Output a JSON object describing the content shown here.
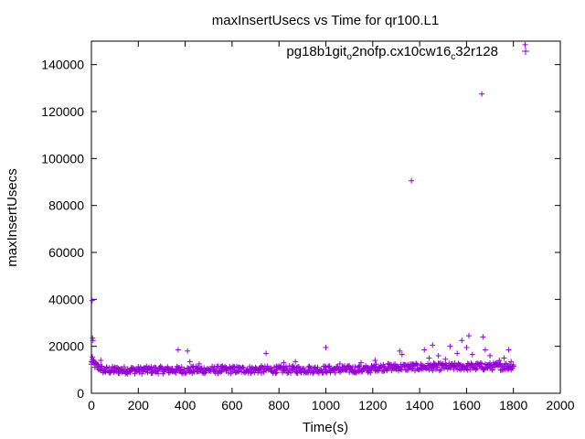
{
  "chart_data": {
    "type": "scatter",
    "title": "maxInsertUsecs vs Time for qr100.L1",
    "xlabel": "Time(s)",
    "ylabel": "maxInsertUsecs",
    "xlim": [
      0,
      2000
    ],
    "ylim": [
      0,
      150000
    ],
    "xticks": [
      0,
      200,
      400,
      600,
      800,
      1000,
      1200,
      1400,
      1600,
      1800,
      2000
    ],
    "yticks": [
      0,
      20000,
      40000,
      60000,
      80000,
      100000,
      120000,
      140000
    ],
    "grid": false,
    "legend_position": "top-right",
    "marker": "+",
    "color": "#9400d3",
    "series": [
      {
        "name_parts": [
          "pg18b1git",
          "o",
          "2nofp.cx10cw16",
          "c",
          "32r128"
        ],
        "band": {
          "x_start": 0,
          "x_end": 1800,
          "step": 5,
          "segments": [
            {
              "x_from": 0,
              "x_to": 50,
              "y_start": 13000,
              "y_end": 10000
            },
            {
              "x_from": 50,
              "x_to": 1200,
              "y_start": 9800,
              "y_end": 10200
            },
            {
              "x_from": 1200,
              "x_to": 1800,
              "y_start": 11000,
              "y_end": 11500
            }
          ],
          "jitter": 1600
        },
        "points": [
          [
            3,
            39500
          ],
          [
            5,
            23500
          ],
          [
            7,
            22500
          ],
          [
            4,
            15500
          ],
          [
            10,
            14000
          ],
          [
            15,
            12500
          ],
          [
            40,
            14000
          ],
          [
            370,
            18500
          ],
          [
            410,
            18000
          ],
          [
            420,
            13500
          ],
          [
            460,
            12500
          ],
          [
            745,
            17000
          ],
          [
            820,
            13000
          ],
          [
            870,
            13500
          ],
          [
            1000,
            19500
          ],
          [
            1060,
            12500
          ],
          [
            1150,
            13000
          ],
          [
            1210,
            14000
          ],
          [
            1315,
            18000
          ],
          [
            1325,
            16500
          ],
          [
            1365,
            90500
          ],
          [
            1420,
            18500
          ],
          [
            1440,
            15000
          ],
          [
            1455,
            20500
          ],
          [
            1480,
            16000
          ],
          [
            1510,
            14500
          ],
          [
            1530,
            20000
          ],
          [
            1560,
            17000
          ],
          [
            1580,
            22500
          ],
          [
            1600,
            19500
          ],
          [
            1610,
            24500
          ],
          [
            1625,
            16500
          ],
          [
            1665,
            127500
          ],
          [
            1670,
            24000
          ],
          [
            1680,
            18500
          ],
          [
            1700,
            16000
          ],
          [
            1740,
            14000
          ],
          [
            1760,
            15000
          ],
          [
            1780,
            18500
          ],
          [
            1790,
            13500
          ],
          [
            1850,
            148500
          ]
        ]
      }
    ]
  }
}
